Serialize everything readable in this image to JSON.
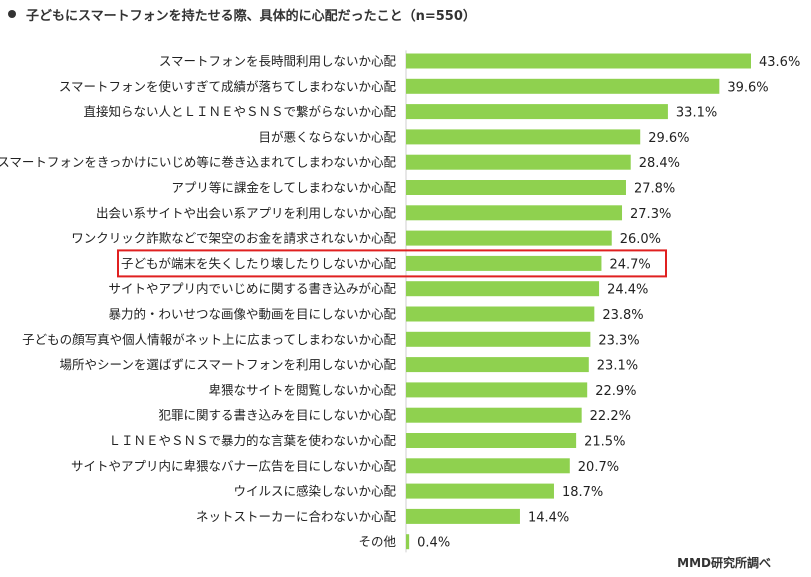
{
  "title": "子どもにスマートフォンを持たせる際、具体的に心配だったこと（n=550）",
  "source": "MMD研究所調べ",
  "colors": {
    "bar": "#8fd14f",
    "highlight": "#e02020",
    "text": "#222222"
  },
  "chart_data": {
    "type": "bar",
    "orientation": "horizontal",
    "title": "子どもにスマートフォンを持たせる際、具体的に心配だったこと（n=550）",
    "xlabel": "",
    "ylabel": "",
    "xlim": [
      0,
      43.6
    ],
    "grid": false,
    "value_suffix": "%",
    "highlighted_category": "子どもが端末を失くしたり壊したりしないか心配",
    "categories": [
      "スマートフォンを長時間利用しないか心配",
      "スマートフォンを使いすぎて成績が落ちてしまわないか心配",
      "直接知らない人とＬＩＮＥやＳＮＳで繋がらないか心配",
      "目が悪くならないか心配",
      "スマートフォンをきっかけにいじめ等に巻き込まれてしまわないか心配",
      "アプリ等に課金をしてしまわないか心配",
      "出会い系サイトや出会い系アプリを利用しないか心配",
      "ワンクリック詐欺などで架空のお金を請求されないか心配",
      "子どもが端末を失くしたり壊したりしないか心配",
      "サイトやアプリ内でいじめに関する書き込みが心配",
      "暴力的・わいせつな画像や動画を目にしないか心配",
      "子どもの顔写真や個人情報がネット上に広まってしまわないか心配",
      "場所やシーンを選ばずにスマートフォンを利用しないか心配",
      "卑猥なサイトを閲覧しないか心配",
      "犯罪に関する書き込みを目にしないか心配",
      "ＬＩＮＥやＳＮＳで暴力的な言葉を使わないか心配",
      "サイトやアプリ内に卑猥なバナー広告を目にしないか心配",
      "ウイルスに感染しないか心配",
      "ネットストーカーに合わないか心配",
      "その他"
    ],
    "values": [
      43.6,
      39.6,
      33.1,
      29.6,
      28.4,
      27.8,
      27.3,
      26.0,
      24.7,
      24.4,
      23.8,
      23.3,
      23.1,
      22.9,
      22.2,
      21.5,
      20.7,
      18.7,
      14.4,
      0.4
    ],
    "value_labels": [
      "43.6%",
      "39.6%",
      "33.1%",
      "29.6%",
      "28.4%",
      "27.8%",
      "27.3%",
      "26.0%",
      "24.7%",
      "24.4%",
      "23.8%",
      "23.3%",
      "23.1%",
      "22.9%",
      "22.2%",
      "21.5%",
      "20.7%",
      "18.7%",
      "14.4%",
      "0.4%"
    ]
  }
}
